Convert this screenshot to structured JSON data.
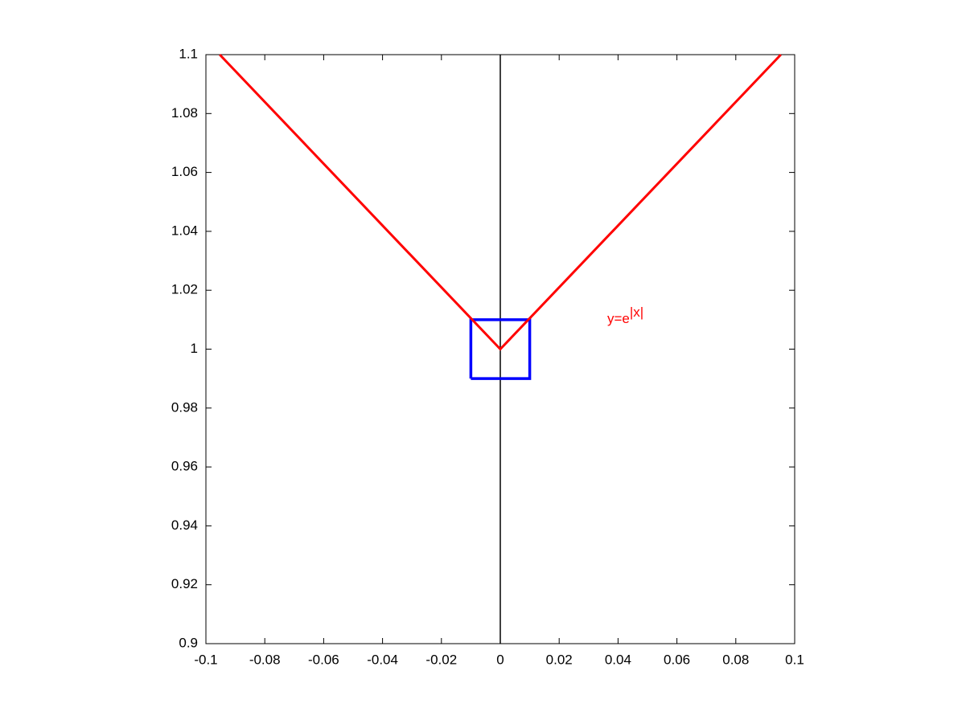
{
  "chart_data": {
    "type": "line",
    "annotation": {
      "text": "y=e",
      "superscript": "|x|",
      "color": "#ff0000"
    },
    "series": [
      {
        "color": "#ff0000",
        "x": [
          -0.0953,
          0,
          0.0953
        ],
        "values": [
          1.1,
          1,
          1.1
        ]
      },
      {
        "color": "#0000ff",
        "x": [
          -0.01,
          0.01,
          0.01,
          -0.01,
          -0.01
        ],
        "values": [
          0.99,
          0.99,
          1.01,
          1.01,
          0.99
        ]
      },
      {
        "color": "#000000",
        "x": [
          0,
          0
        ],
        "values": [
          0.9,
          1.1
        ]
      }
    ],
    "xlim": [
      -0.1,
      0.1
    ],
    "xticks": [
      -0.1,
      -0.08,
      -0.06,
      -0.04,
      -0.02,
      0,
      0.02,
      0.04,
      0.06,
      0.08,
      0.1
    ],
    "ylim": [
      0.9,
      1.1
    ],
    "yticks": [
      0.9,
      0.92,
      0.94,
      0.96,
      0.98,
      1,
      1.02,
      1.04,
      1.06,
      1.08,
      1.1
    ],
    "grid": false
  }
}
